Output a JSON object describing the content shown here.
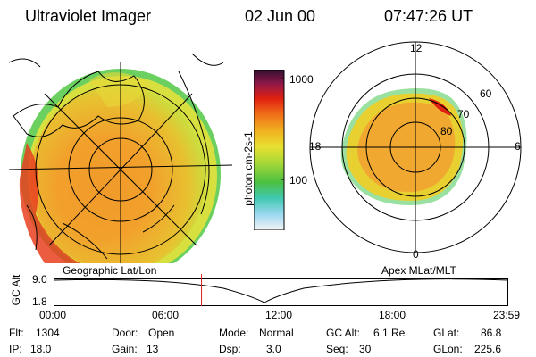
{
  "header": {
    "title": "Ultraviolet Imager",
    "date": "02 Jun 00",
    "time": "07:47:26 UT"
  },
  "colorbar": {
    "unit_label": "photon cm-2s-1",
    "ticks": [
      "1000",
      "100"
    ],
    "colors": [
      "#f4f4f4",
      "#9ad8f0",
      "#40c8b0",
      "#4cc040",
      "#a8d838",
      "#e8e030",
      "#f0b020",
      "#f07018",
      "#e02010",
      "#901848",
      "#301030"
    ]
  },
  "left_panel": {
    "label": "Geographic Lat/Lon"
  },
  "right_panel": {
    "label": "Apex MLat/MLT",
    "mlt_labels": {
      "top": "12",
      "bottom": "0",
      "left": "18",
      "right": "6"
    },
    "lat_labels": [
      "60",
      "70",
      "80"
    ]
  },
  "altitude_plot": {
    "y_title": "GC Alt",
    "y_ticks": [
      "9.0",
      "1.8"
    ],
    "x_ticks": [
      "00:00",
      "06:00",
      "12:00",
      "18:00",
      "23:59"
    ],
    "current_time_hours": 7.79,
    "marker_color": "#e02020"
  },
  "status": {
    "col1": [
      {
        "label": "Flt:",
        "value": "1304"
      },
      {
        "label": "IP:",
        "value": "18.0"
      }
    ],
    "col2": [
      {
        "label": "Door:",
        "value": "Open"
      },
      {
        "label": "Gain:",
        "value": "13"
      }
    ],
    "col3": [
      {
        "label": "Mode:",
        "value": "Normal"
      },
      {
        "label": "Dsp:",
        "value": "3.0"
      }
    ],
    "col4": [
      {
        "label": "GC Alt:",
        "value": "6.1 Re"
      },
      {
        "label": "Seq:",
        "value": "30"
      }
    ],
    "col5": [
      {
        "label": "GLat:",
        "value": "86.8"
      },
      {
        "label": "GLon:",
        "value": "225.6"
      }
    ]
  }
}
